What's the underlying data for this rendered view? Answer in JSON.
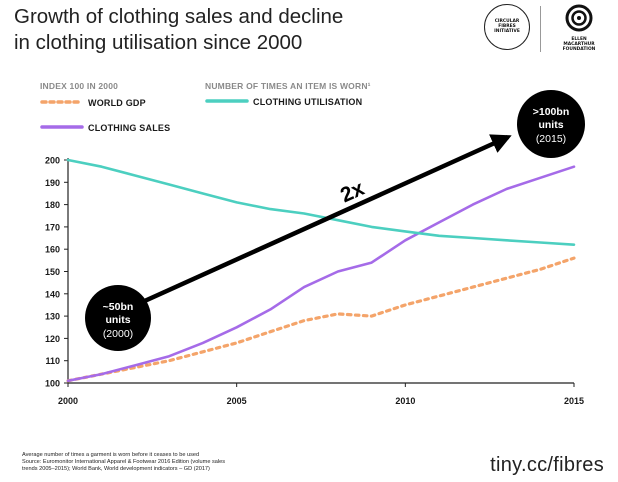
{
  "header": {
    "title_line1": "Growth of clothing sales and decline",
    "title_line2": "in clothing utilisation since 2000"
  },
  "logos": {
    "cfi_line1": "CIRCULAR",
    "cfi_line2": "FIBRES",
    "cfi_line3": "INITIATIVE",
    "emf_line1": "ELLEN",
    "emf_line2": "MACARTHUR",
    "emf_line3": "FOUNDATION"
  },
  "legend": {
    "left_heading": "INDEX 100 IN 2000",
    "right_heading": "NUMBER OF TIMES AN ITEM IS WORN¹",
    "gdp_label": "WORLD GDP",
    "sales_label": "CLOTHING SALES",
    "utilisation_label": "CLOTHING UTILISATION"
  },
  "colors": {
    "gdp": "#f4a46a",
    "sales": "#a56be8",
    "utilisation": "#4ccfc0",
    "bubble": "#000000",
    "arrow": "#000000"
  },
  "annotations": {
    "start_bubble_line1": "~50bn",
    "start_bubble_line2": "units",
    "start_bubble_line3": "(2000)",
    "end_bubble_line1": ">100bn",
    "end_bubble_line2": "units",
    "end_bubble_line3": "(2015)",
    "multiplier": "2x"
  },
  "chart_data": {
    "type": "line",
    "title": "Growth of clothing sales and decline in clothing utilisation since 2000",
    "xlabel": "",
    "ylabel": "Index 100 in 2000",
    "xlim": [
      2000,
      2015
    ],
    "ylim": [
      100,
      200
    ],
    "x_ticks": [
      2000,
      2005,
      2010,
      2015
    ],
    "y_ticks": [
      100,
      110,
      120,
      130,
      140,
      150,
      160,
      170,
      180,
      190,
      200
    ],
    "grid": false,
    "series": [
      {
        "name": "WORLD GDP",
        "style": "dotted",
        "x": [
          2000,
          2001,
          2002,
          2003,
          2004,
          2005,
          2006,
          2007,
          2008,
          2009,
          2010,
          2011,
          2012,
          2013,
          2014,
          2015
        ],
        "values": [
          101,
          104,
          107,
          110,
          114,
          118,
          123,
          128,
          131,
          130,
          135,
          139,
          143,
          147,
          151,
          156
        ]
      },
      {
        "name": "CLOTHING SALES",
        "style": "solid",
        "x": [
          2000,
          2001,
          2002,
          2003,
          2004,
          2005,
          2006,
          2007,
          2008,
          2009,
          2010,
          2011,
          2012,
          2013,
          2014,
          2015
        ],
        "values": [
          101,
          104,
          108,
          112,
          118,
          125,
          133,
          143,
          150,
          154,
          164,
          172,
          180,
          187,
          192,
          197
        ]
      },
      {
        "name": "CLOTHING UTILISATION",
        "style": "solid",
        "x": [
          2000,
          2001,
          2002,
          2003,
          2004,
          2005,
          2006,
          2007,
          2008,
          2009,
          2010,
          2011,
          2012,
          2013,
          2014,
          2015
        ],
        "values": [
          200,
          197,
          193,
          189,
          185,
          181,
          178,
          176,
          173,
          170,
          168,
          166,
          165,
          164,
          163,
          162
        ]
      }
    ]
  },
  "footer": {
    "footnote_line1": "Average number of times a garment is worn before it ceases to be used",
    "footnote_line2": "Source: Euromonitor International Apparel & Footwear 2016 Edition (volume sales",
    "footnote_line3": "trends 2005–2015); World Bank, World development indicators – GD (2017)",
    "url": "tiny.cc/fibres"
  }
}
